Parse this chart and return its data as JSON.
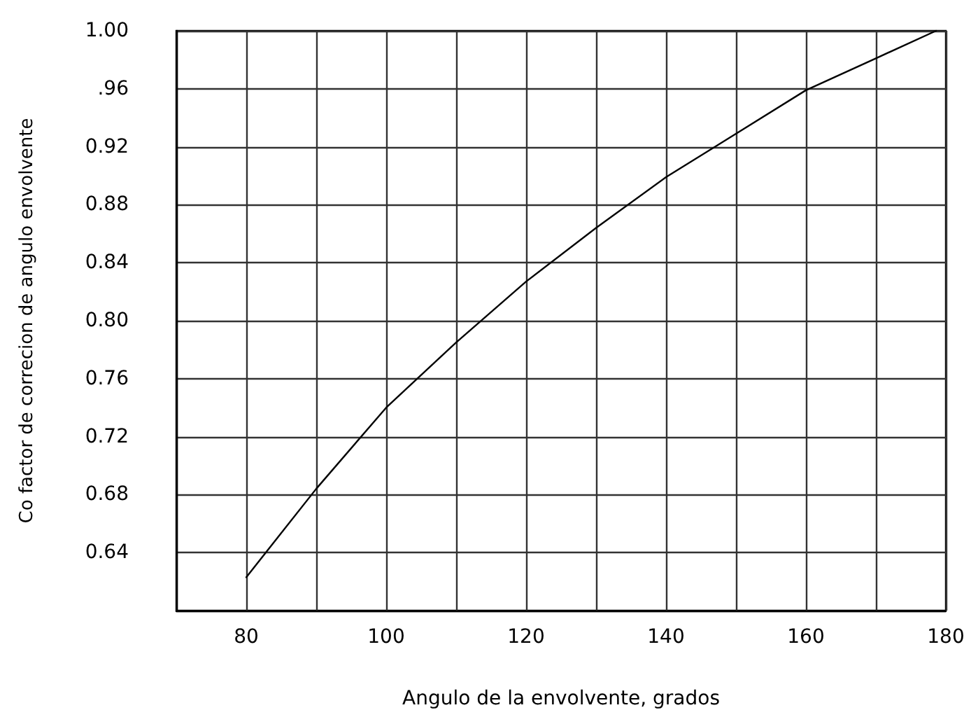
{
  "chart_data": {
    "type": "line",
    "xlabel": "Angulo de la envolvente, grados",
    "ylabel": "Co factor de correcion de angulo envolvente",
    "x": [
      80,
      90,
      100,
      110,
      120,
      130,
      140,
      150,
      160,
      170,
      178.6
    ],
    "series": [
      {
        "color": "#000000",
        "values": [
          0.623,
          0.684,
          0.74,
          0.785,
          0.827,
          0.864,
          0.899,
          0.929,
          0.959,
          0.981,
          1.0
        ]
      }
    ],
    "xlim": [
      70,
      180
    ],
    "xticks": [
      {
        "value": 70,
        "label": null
      },
      80,
      {
        "value": 90,
        "label": null
      },
      100,
      {
        "value": 110,
        "label": null
      },
      120,
      {
        "value": 130,
        "label": null
      },
      140,
      {
        "value": 150,
        "label": null
      },
      160,
      {
        "value": 170,
        "label": null
      },
      180
    ],
    "ylim": [
      0.6,
      1.0
    ],
    "yticks": [
      {
        "value": 0.6,
        "label": null
      },
      {
        "value": 0.64,
        "label": "0.64"
      },
      {
        "value": 0.68,
        "label": "0.68"
      },
      {
        "value": 0.72,
        "label": "0.72"
      },
      {
        "value": 0.76,
        "label": "0.76"
      },
      {
        "value": 0.8,
        "label": "0.80"
      },
      {
        "value": 0.84,
        "label": "0.84"
      },
      {
        "value": 0.88,
        "label": "0.88"
      },
      {
        "value": 0.92,
        "label": "0.92"
      },
      {
        "value": 0.96,
        "label": ".96"
      },
      {
        "value": 1.0,
        "label": "1.00"
      }
    ],
    "grid": true,
    "marker": "none",
    "line_style": "solid"
  }
}
